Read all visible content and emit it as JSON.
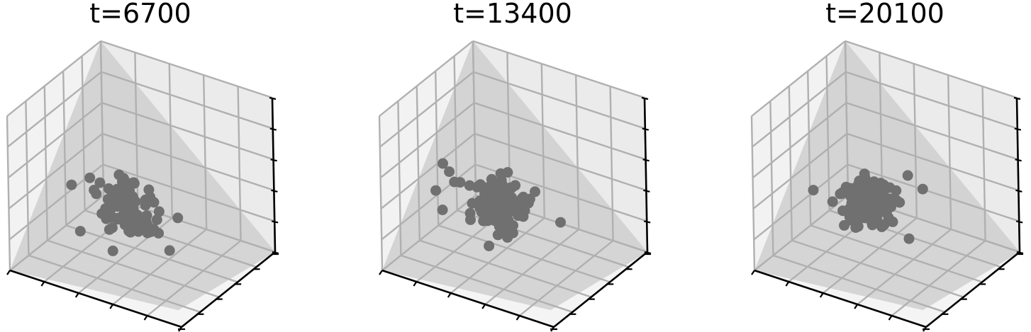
{
  "figure": {
    "panels": [
      {
        "title": "t=6700"
      },
      {
        "title": "t=13400"
      },
      {
        "title": "t=20100"
      }
    ]
  },
  "chart_data": [
    {
      "type": "scatter",
      "title": "t=6700",
      "projection": "3d",
      "grid": true,
      "tick_labels": false,
      "point_color": "#707070",
      "shade_color": "#cfcfcf",
      "xlim": [
        0,
        1
      ],
      "ylim": [
        0,
        1
      ],
      "zlim": [
        0,
        1
      ],
      "cluster": {
        "center": [
          0.42,
          0.5,
          0.32
        ],
        "spread": 0.085,
        "count": 90
      },
      "outliers": [
        [
          0.12,
          0.45,
          0.38
        ],
        [
          0.6,
          0.7,
          0.22
        ],
        [
          0.55,
          0.1,
          0.28
        ],
        [
          0.3,
          0.78,
          0.3
        ],
        [
          0.25,
          0.3,
          0.2
        ]
      ]
    },
    {
      "type": "scatter",
      "title": "t=13400",
      "projection": "3d",
      "grid": true,
      "tick_labels": false,
      "point_color": "#707070",
      "shade_color": "#cfcfcf",
      "xlim": [
        0,
        1
      ],
      "ylim": [
        0,
        1
      ],
      "zlim": [
        0,
        1
      ],
      "cluster": {
        "center": [
          0.42,
          0.5,
          0.34
        ],
        "spread": 0.075,
        "count": 130
      },
      "outliers": [
        [
          0.2,
          0.3,
          0.62
        ],
        [
          0.22,
          0.33,
          0.56
        ],
        [
          0.65,
          0.72,
          0.2
        ],
        [
          0.2,
          0.58,
          0.12
        ],
        [
          0.1,
          0.4,
          0.36
        ]
      ]
    },
    {
      "type": "scatter",
      "title": "t=20100",
      "projection": "3d",
      "grid": true,
      "tick_labels": false,
      "point_color": "#707070",
      "shade_color": "#cfcfcf",
      "xlim": [
        0,
        1
      ],
      "ylim": [
        0,
        1
      ],
      "zlim": [
        0,
        1
      ],
      "cluster": {
        "center": [
          0.4,
          0.5,
          0.34
        ],
        "spread": 0.07,
        "count": 170
      },
      "outliers": [
        [
          0.55,
          0.8,
          0.34
        ],
        [
          0.62,
          0.52,
          0.18
        ],
        [
          0.12,
          0.42,
          0.36
        ]
      ]
    }
  ]
}
